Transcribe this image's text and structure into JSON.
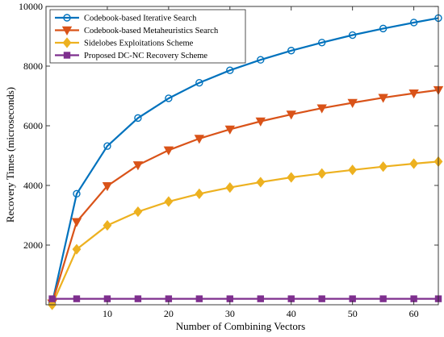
{
  "chart_data": {
    "type": "line",
    "xlabel": "Number of Combining Vectors",
    "ylabel": "Recovery Times (microseconds)",
    "xlim": [
      0,
      64
    ],
    "ylim": [
      0,
      10000
    ],
    "xticks": [
      10,
      20,
      30,
      40,
      50,
      60
    ],
    "yticks": [
      2000,
      4000,
      6000,
      8000,
      10000
    ],
    "grid": false,
    "legend_position": "top-left",
    "x": [
      1,
      5,
      10,
      15,
      20,
      25,
      30,
      35,
      40,
      45,
      50,
      55,
      60,
      64
    ],
    "series": [
      {
        "name": "Codebook-based Iterative Search",
        "color": "#0072BD",
        "marker": "circle",
        "values": [
          50,
          3720,
          5320,
          6260,
          6920,
          7440,
          7860,
          8210,
          8520,
          8790,
          9040,
          9260,
          9460,
          9610
        ]
      },
      {
        "name": "Codebook-based Metaheuristics Search",
        "color": "#D95319",
        "marker": "triangle-down",
        "values": [
          50,
          2780,
          3980,
          4680,
          5180,
          5570,
          5880,
          6150,
          6380,
          6590,
          6770,
          6940,
          7090,
          7200
        ]
      },
      {
        "name": "Sidelobes Exploitations Scheme",
        "color": "#EDB120",
        "marker": "diamond",
        "values": [
          0,
          1860,
          2660,
          3120,
          3460,
          3720,
          3930,
          4110,
          4270,
          4400,
          4520,
          4630,
          4730,
          4800
        ]
      },
      {
        "name": "Proposed DC-NC Recovery Scheme",
        "color": "#7E2F8E",
        "marker": "square",
        "values": [
          200,
          200,
          200,
          200,
          200,
          200,
          200,
          200,
          200,
          200,
          200,
          200,
          200,
          200
        ]
      }
    ]
  }
}
